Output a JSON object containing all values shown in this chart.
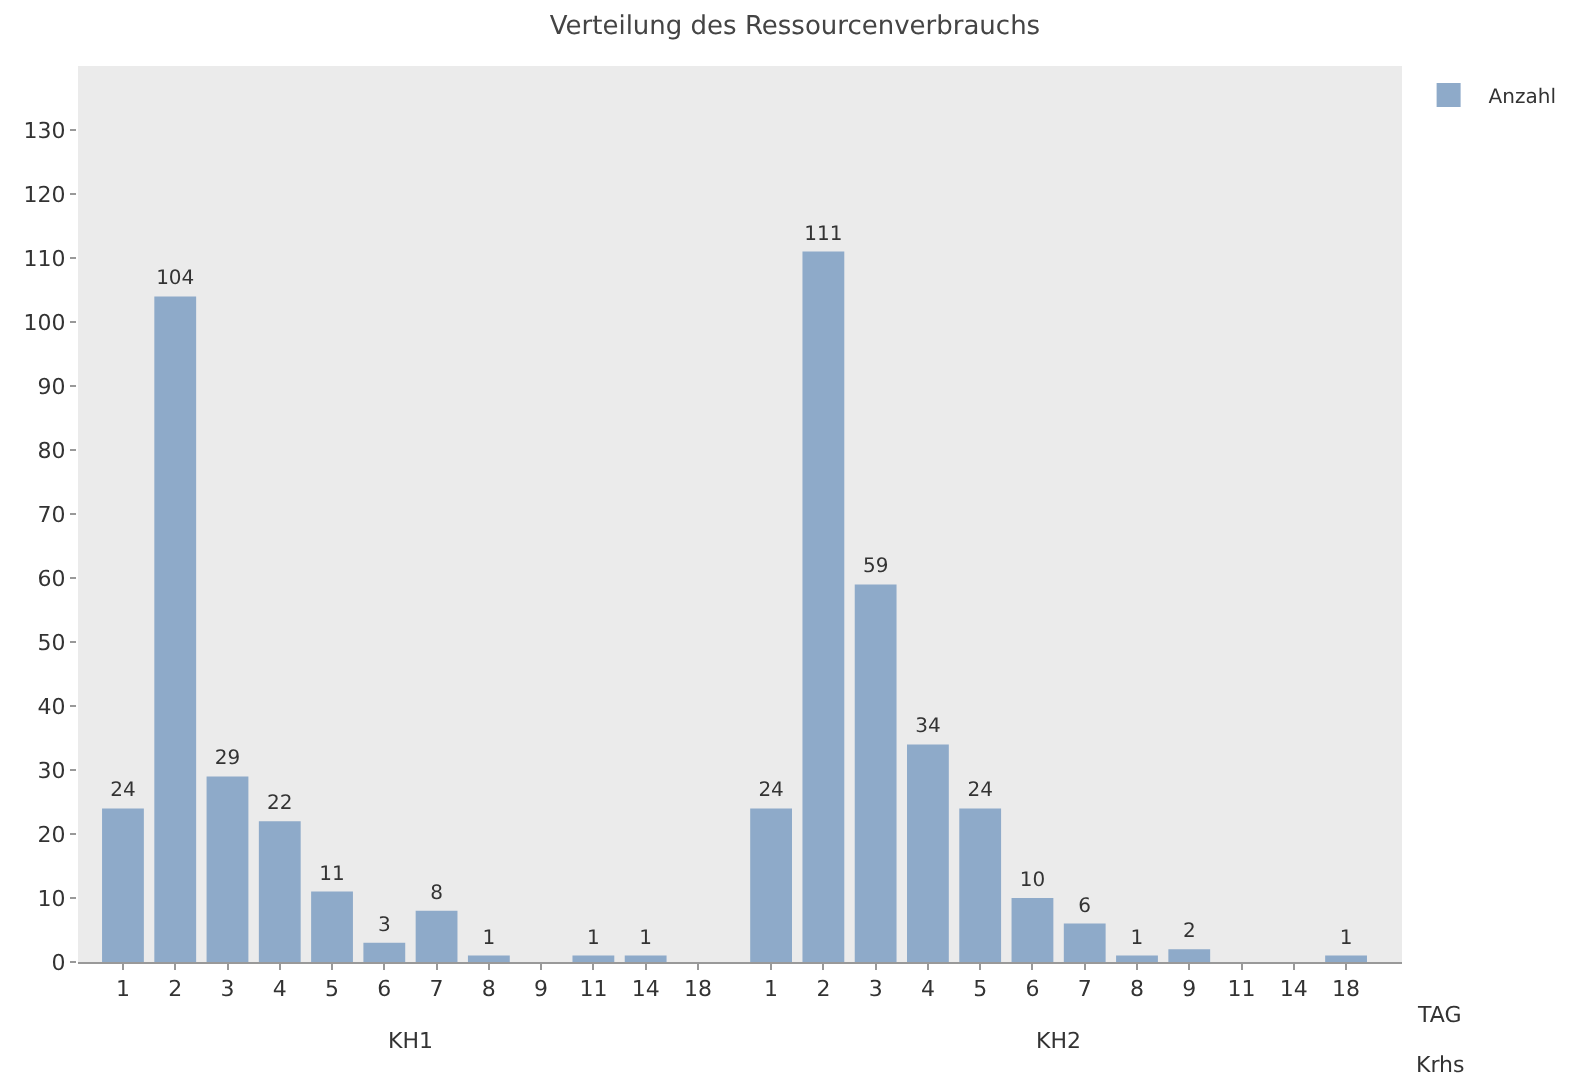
{
  "chart_data": {
    "type": "bar",
    "title": "Verteilung des Ressourcenverbrauchs",
    "xlabel": "TAG",
    "categories": [
      "1",
      "2",
      "3",
      "4",
      "5",
      "6",
      "7",
      "8",
      "9",
      "11",
      "14",
      "18",
      "1",
      "2",
      "3",
      "4",
      "5",
      "6",
      "7",
      "8",
      "9",
      "11",
      "14",
      "18"
    ],
    "series": [
      {
        "name": "Anzahl",
        "color": "#8eaac9",
        "values": [
          24,
          104,
          29,
          22,
          11,
          3,
          8,
          1,
          0,
          1,
          1,
          0,
          24,
          111,
          59,
          34,
          24,
          10,
          6,
          1,
          2,
          0,
          0,
          1
        ],
        "value_labels": [
          "24",
          "104",
          "29",
          "22",
          "11",
          "3",
          "8",
          "1",
          null,
          "1",
          "1",
          null,
          "24",
          "111",
          "59",
          "34",
          "24",
          "10",
          "6",
          "1",
          "2",
          null,
          null,
          "1"
        ]
      }
    ],
    "annotations": [
      "KH1",
      "KH2",
      "Krhs"
    ],
    "ylim": [
      0,
      140
    ],
    "yticks": [
      0,
      10,
      20,
      30,
      40,
      50,
      60,
      70,
      80,
      90,
      100,
      110,
      120,
      130
    ],
    "grid": false,
    "legend": "top right"
  }
}
